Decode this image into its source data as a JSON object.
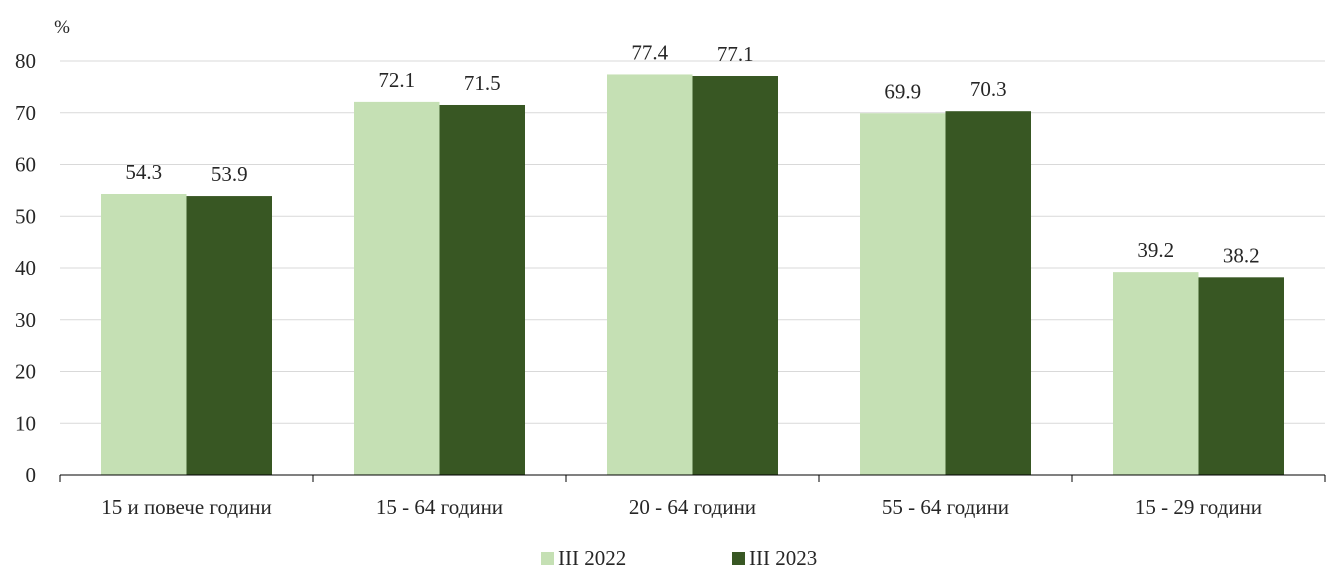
{
  "chart_data": {
    "type": "bar",
    "unit_label": "%",
    "categories": [
      "15 и повече години",
      "15 - 64 години",
      "20 - 64 години",
      "55 - 64 години",
      "15 - 29 години"
    ],
    "series": [
      {
        "name": "III 2022",
        "values": [
          54.3,
          72.1,
          77.4,
          69.9,
          39.2
        ],
        "color": "#c5e0b4"
      },
      {
        "name": "III 2023",
        "values": [
          53.9,
          71.5,
          77.1,
          70.3,
          38.2
        ],
        "color": "#385723"
      }
    ],
    "ylim": [
      0,
      80
    ],
    "yticks": [
      0,
      10,
      20,
      30,
      40,
      50,
      60,
      70,
      80
    ],
    "grid": true,
    "legend_position": "bottom",
    "data_labels": true,
    "gridline_color": "#d9d9d9",
    "axis_color": "#000000"
  }
}
